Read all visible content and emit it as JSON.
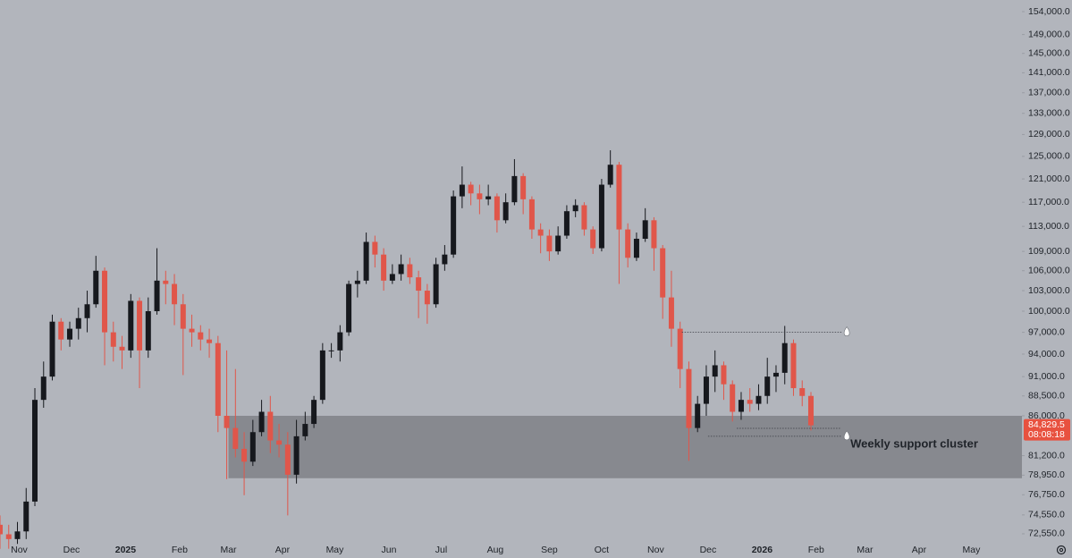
{
  "chart_data": {
    "type": "candlestick",
    "log_scale": true,
    "up_color": "#16181d",
    "down_color": "#e0564a",
    "open": [
      73500,
      72500,
      72000,
      72800,
      76000,
      88000,
      91000,
      98500,
      96000,
      97500,
      99000,
      101000,
      106000,
      97000,
      95000,
      94500,
      101500,
      94500,
      100000,
      104500,
      104000,
      101000,
      97500,
      97000,
      96000,
      95500,
      86000,
      84500,
      82000,
      80500,
      84000,
      86500,
      83000,
      82500,
      79000,
      83500,
      85000,
      88000,
      94500,
      94500,
      97000,
      104000,
      104500,
      110500,
      108500,
      104500,
      105500,
      107000,
      105000,
      103000,
      101000,
      107000,
      108500,
      118000,
      120000,
      118500,
      117500,
      118000,
      114000,
      117000,
      121500,
      117500,
      112500,
      111500,
      109000,
      111500,
      115500,
      116500,
      112500,
      109500,
      120000,
      123500,
      112500,
      108000,
      111000,
      114000,
      109500,
      102000,
      97500,
      92000,
      84500,
      87500,
      91000,
      92500,
      90000,
      86500,
      88000,
      87500,
      88500,
      91000,
      91500,
      95500,
      89500,
      88500
    ],
    "high": [
      74500,
      73500,
      73800,
      77500,
      89500,
      93000,
      99500,
      99000,
      98500,
      100500,
      103000,
      108300,
      106500,
      98500,
      96500,
      102500,
      102000,
      102000,
      109500,
      106000,
      105500,
      102500,
      99500,
      98000,
      97500,
      96500,
      94500,
      92000,
      84000,
      85500,
      88000,
      88500,
      85000,
      84000,
      85500,
      86500,
      88500,
      95500,
      95500,
      98000,
      104500,
      106000,
      112000,
      111500,
      109500,
      107000,
      108500,
      108000,
      106000,
      104000,
      108000,
      110000,
      119000,
      123200,
      120500,
      120000,
      120000,
      118500,
      118500,
      124500,
      122000,
      118000,
      113500,
      112500,
      113000,
      116500,
      117500,
      117000,
      113000,
      121000,
      126100,
      124000,
      113500,
      112000,
      116000,
      114500,
      110000,
      106000,
      98500,
      93000,
      88500,
      92500,
      94500,
      93000,
      90500,
      89000,
      89500,
      90000,
      93500,
      92500,
      97900,
      96000,
      90500,
      89000
    ],
    "low": [
      71000,
      71000,
      71500,
      72000,
      75500,
      87000,
      90500,
      94500,
      95000,
      96000,
      97000,
      100500,
      92500,
      93000,
      92000,
      93500,
      89500,
      93500,
      99500,
      101000,
      98000,
      91200,
      95000,
      94500,
      93500,
      84000,
      78500,
      81000,
      76700,
      80000,
      83500,
      81500,
      81000,
      74500,
      78000,
      83000,
      84500,
      87500,
      93500,
      93000,
      96500,
      102000,
      104000,
      106500,
      103000,
      104000,
      104500,
      104000,
      99000,
      98200,
      100500,
      106000,
      108000,
      116000,
      116500,
      115000,
      116500,
      112000,
      113500,
      116500,
      115000,
      111000,
      108700,
      107500,
      108500,
      111000,
      114500,
      111500,
      108600,
      109000,
      119500,
      104000,
      106500,
      107500,
      110500,
      106000,
      98900,
      95000,
      89500,
      80600,
      84000,
      86000,
      89000,
      88000,
      85300,
      85500,
      86500,
      86700,
      87500,
      89000,
      90000,
      88500,
      87200,
      84200
    ],
    "close": [
      72500,
      72000,
      72800,
      76000,
      88000,
      91000,
      98500,
      96000,
      97500,
      99000,
      101000,
      106000,
      97000,
      95000,
      94500,
      101500,
      94500,
      100000,
      104500,
      104000,
      101000,
      97500,
      97000,
      96000,
      95500,
      86000,
      84500,
      82000,
      80500,
      84000,
      86500,
      83000,
      82500,
      79000,
      83500,
      85000,
      88000,
      94500,
      94500,
      97000,
      104000,
      104500,
      110500,
      108500,
      104500,
      105500,
      107000,
      105000,
      103000,
      101000,
      107000,
      108500,
      118000,
      120000,
      118500,
      117500,
      118000,
      114000,
      117000,
      121500,
      117500,
      112500,
      111500,
      109000,
      111500,
      115500,
      116500,
      112500,
      109500,
      120000,
      123500,
      112500,
      108000,
      111000,
      114000,
      109500,
      102000,
      97500,
      92000,
      84500,
      87500,
      91000,
      92500,
      90000,
      86500,
      88000,
      87500,
      88500,
      91000,
      91500,
      95500,
      89500,
      88500,
      84829.5
    ],
    "xlim": [
      0,
      117.2
    ],
    "xticks": [
      {
        "value": 2.2,
        "label": "Nov"
      },
      {
        "value": 8.2,
        "label": "Dec"
      },
      {
        "value": 14.4,
        "label": "2025"
      },
      {
        "value": 20.6,
        "label": "Feb"
      },
      {
        "value": 26.2,
        "label": "Mar"
      },
      {
        "value": 32.4,
        "label": "Apr"
      },
      {
        "value": 38.4,
        "label": "May"
      },
      {
        "value": 44.6,
        "label": "Jun"
      },
      {
        "value": 50.6,
        "label": "Jul"
      },
      {
        "value": 56.8,
        "label": "Aug"
      },
      {
        "value": 63,
        "label": "Sep"
      },
      {
        "value": 69,
        "label": "Oct"
      },
      {
        "value": 75.2,
        "label": "Nov"
      },
      {
        "value": 81.2,
        "label": "Dec"
      },
      {
        "value": 87.4,
        "label": "2026"
      },
      {
        "value": 93.6,
        "label": "Feb"
      },
      {
        "value": 99.2,
        "label": "Mar"
      },
      {
        "value": 105.4,
        "label": "Apr"
      },
      {
        "value": 111.4,
        "label": "May"
      }
    ],
    "ylim": [
      71800,
      156600
    ],
    "yticks": [
      {
        "value": 154000,
        "label": "154,000.0"
      },
      {
        "value": 149000,
        "label": "149,000.0"
      },
      {
        "value": 145000,
        "label": "145,000.0"
      },
      {
        "value": 141000,
        "label": "141,000.0"
      },
      {
        "value": 137000,
        "label": "137,000.0"
      },
      {
        "value": 133000,
        "label": "133,000.0"
      },
      {
        "value": 129000,
        "label": "129,000.0"
      },
      {
        "value": 125000,
        "label": "125,000.0"
      },
      {
        "value": 121000,
        "label": "121,000.0"
      },
      {
        "value": 117000,
        "label": "117,000.0"
      },
      {
        "value": 113000,
        "label": "113,000.0"
      },
      {
        "value": 109000,
        "label": "109,000.0"
      },
      {
        "value": 106000,
        "label": "106,000.0"
      },
      {
        "value": 103000,
        "label": "103,000.0"
      },
      {
        "value": 100000,
        "label": "100,000.0"
      },
      {
        "value": 97000,
        "label": "97,000.0"
      },
      {
        "value": 94000,
        "label": "94,000.0"
      },
      {
        "value": 91000,
        "label": "91,000.0"
      },
      {
        "value": 88500,
        "label": "88,500.0"
      },
      {
        "value": 86000,
        "label": "86,000.0"
      },
      {
        "value": 81200,
        "label": "81,200.0"
      },
      {
        "value": 78950,
        "label": "78,950.0"
      },
      {
        "value": 76750,
        "label": "76,750.0"
      },
      {
        "value": 74550,
        "label": "74,550.0"
      },
      {
        "value": 72550,
        "label": "72,550.0"
      }
    ],
    "zone": {
      "label": "Weekly support cluster",
      "range": [
        78600,
        86000
      ],
      "x_start": 26.2,
      "color": "#7f8187"
    },
    "levels": [
      {
        "value": 97000,
        "x": [
          78.2,
          96.5
        ]
      },
      {
        "value": 84460,
        "x": [
          84.5,
          96.5
        ]
      },
      {
        "value": 83500,
        "x": [
          81.2,
          96.5
        ]
      }
    ],
    "last_price": {
      "value": 84829.5,
      "label": "84,829.5",
      "countdown": "08:08:18",
      "color": "#e8513f"
    }
  }
}
